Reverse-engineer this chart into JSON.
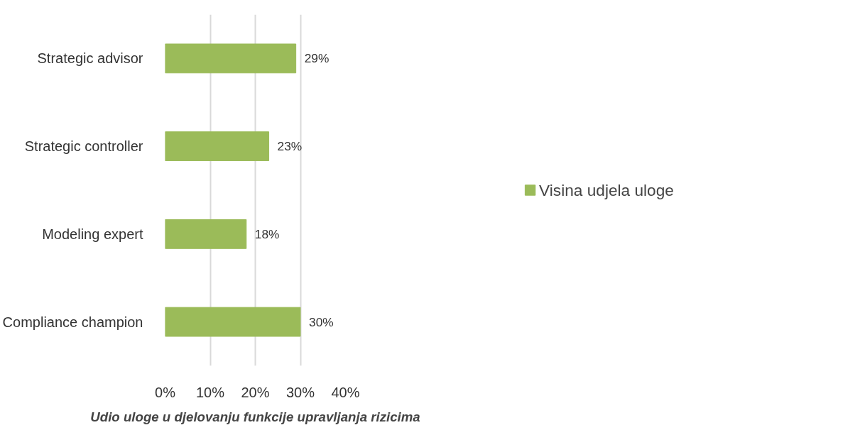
{
  "chart_data": {
    "type": "bar",
    "orientation": "horizontal",
    "categories": [
      "Strategic advisor",
      "Strategic controller",
      "Modeling expert",
      "Compliance champion"
    ],
    "series": [
      {
        "name": "Visina udjela uloge",
        "color": "#9bbb59",
        "values": [
          29,
          23,
          18,
          30
        ],
        "value_labels": [
          "29%",
          "23%",
          "18%",
          "30%"
        ]
      }
    ],
    "xlabel": "Udio uloge u djelovanju funkcije upravljanja rizicima",
    "xlim": [
      0,
      40
    ],
    "xticks": [
      {
        "value": 0,
        "label": "0%"
      },
      {
        "value": 10,
        "label": "10%"
      },
      {
        "value": 20,
        "label": "20%"
      },
      {
        "value": 30,
        "label": "30%"
      },
      {
        "value": 40,
        "label": "40%"
      }
    ],
    "grid": "x",
    "legend": "right"
  }
}
